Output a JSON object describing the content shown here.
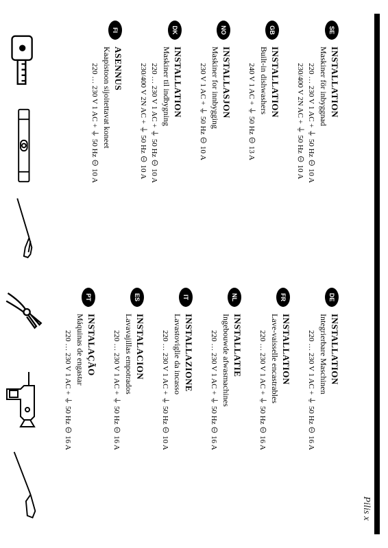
{
  "handwritten": "Pilis x",
  "left_column": [
    {
      "code": "SE",
      "title": "INSTALLATION",
      "subtitle": "Maskiner för inbyggnad",
      "specs": [
        "220 … 230 V  1 AC + ⏚ 50 Hz ⊖ 10 A",
        "230/400 V  2N AC + ⏚ 50 Hz ⊖ 10 A"
      ]
    },
    {
      "code": "GB",
      "title": "INSTALLATION",
      "subtitle": "Built-in dishwashers",
      "specs": [
        "240 V  1 AC + ⏚ 50 Hz ⊖ 13 A"
      ]
    },
    {
      "code": "NO",
      "title": "INSTALLASJON",
      "subtitle": "Maskiner for innbygging",
      "specs": [
        "230 V  1 AC + ⏚ 50 Hz ⊖ 10 A"
      ]
    },
    {
      "code": "DK",
      "title": "INSTALLATION",
      "subtitle": "Maskiner til indbygning",
      "specs": [
        "220 … 230 V  1 AC + ⏚ 50 Hz ⊖ 10 A",
        "230/400 V  2N AC + ⏚ 50 Hz ⊖ 10 A"
      ]
    },
    {
      "code": "FI",
      "title": "ASENNUS",
      "subtitle": "Kaapistoon sijoitettavat koneet",
      "specs": [
        "220 … 230 V  1 AC + ⏚ 50 Hz ⊖ 10 A"
      ]
    }
  ],
  "right_column": [
    {
      "code": "DE",
      "title": "INSTALLATION",
      "subtitle": "Integrierbare Maschinen",
      "specs": [
        "220 … 230 V  1 AC + ⏚ 50 Hz ⊖ 16 A"
      ]
    },
    {
      "code": "FR",
      "title": "INSTALLATION",
      "subtitle": "Lave-vaisselle encastrables",
      "specs": [
        "220 … 230 V  1 AC + ⏚ 50 Hz ⊖ 16 A"
      ]
    },
    {
      "code": "NL",
      "title": "INSTALLATIE",
      "subtitle": "Ingebouwde afwasmachines",
      "specs": [
        "220 … 230 V  1 AC + ⏚ 50 Hz ⊖ 16 A"
      ]
    },
    {
      "code": "IT",
      "title": "INSTALLAZIONE",
      "subtitle": "Lavastoviglie da incasso",
      "specs": [
        "220 … 230 V  1 AC + ⏚ 50 Hz ⊖ 10 A"
      ]
    },
    {
      "code": "ES",
      "title": "INSTALACION",
      "subtitle": "Lavavajillas empotrados",
      "specs": [
        "220 … 230 V  1 AC + ⏚ 50 Hz ⊖ 16 A"
      ]
    },
    {
      "code": "PT",
      "title": "INSTALAÇÃO",
      "subtitle": "Máquinas de engastar",
      "specs": [
        "220 … 230 V  1 AC + ⏚ 50 Hz ⊖ 16 A"
      ]
    }
  ]
}
